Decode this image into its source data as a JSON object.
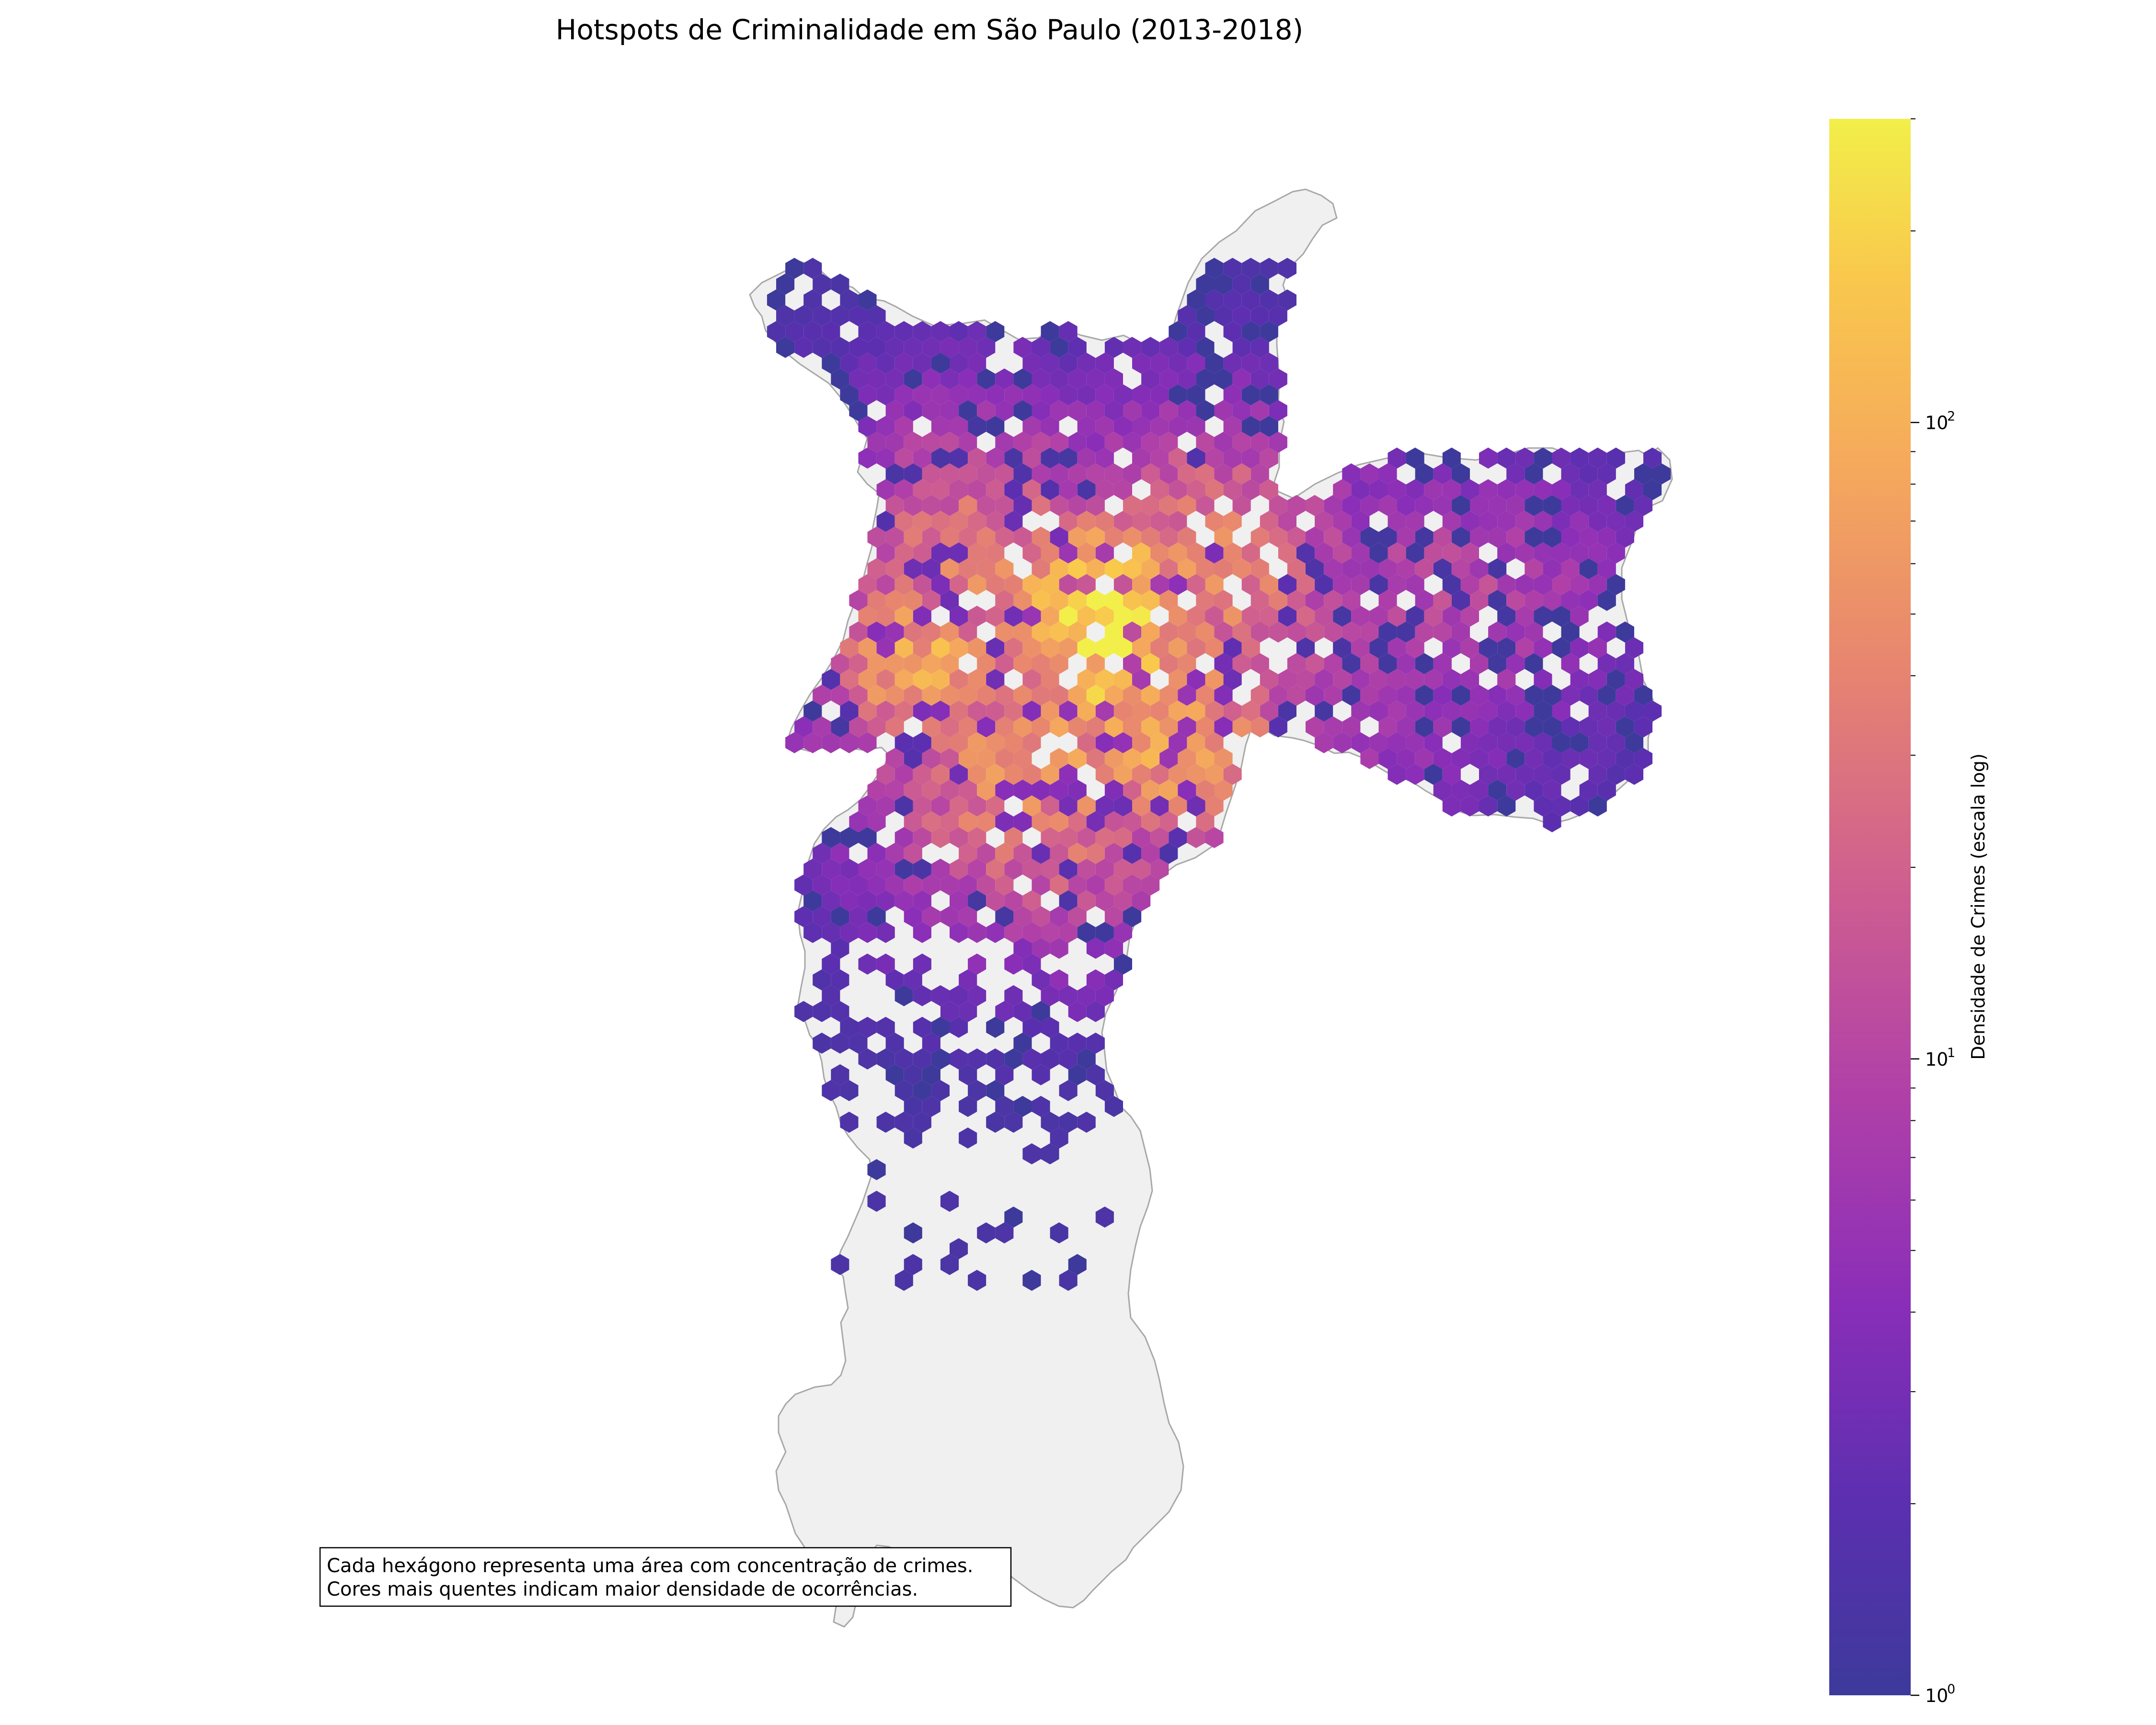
{
  "title": "Hotspots de Criminalidade em São Paulo (2013-2018)",
  "note": {
    "line1": "Cada hexágono representa uma área com concentração de crimes.",
    "line2": "Cores mais quentes indicam maior densidade de ocorrências."
  },
  "colorbar": {
    "label": "Densidade de Crimes (escala log)",
    "scale": "log",
    "range": [
      1,
      300
    ],
    "colormap": "plasma",
    "ticks": [
      {
        "value": 1,
        "base": "10",
        "exp": "0"
      },
      {
        "value": 10,
        "base": "10",
        "exp": "1"
      },
      {
        "value": 100,
        "base": "10",
        "exp": "2"
      }
    ]
  },
  "colors": {
    "land": "#f0f0f0",
    "outline": "#a8a8a8",
    "colormap_stops": [
      "#3d3a9b",
      "#5b2fb0",
      "#8a2eb8",
      "#b040a8",
      "#d0608e",
      "#e8876e",
      "#f5a95c",
      "#f9c84c",
      "#f2ef4a"
    ]
  },
  "chart_data": {
    "type": "hexbin",
    "title": "Hotspots de Criminalidade em São Paulo (2013-2018)",
    "color_scale": "log",
    "color_range": [
      1,
      300
    ],
    "peak_density_approx": 250,
    "description_of_values": "Hexagon counts of crime occurrences (log scale); highest densities in the central region, lower densities toward the peripheries"
  }
}
